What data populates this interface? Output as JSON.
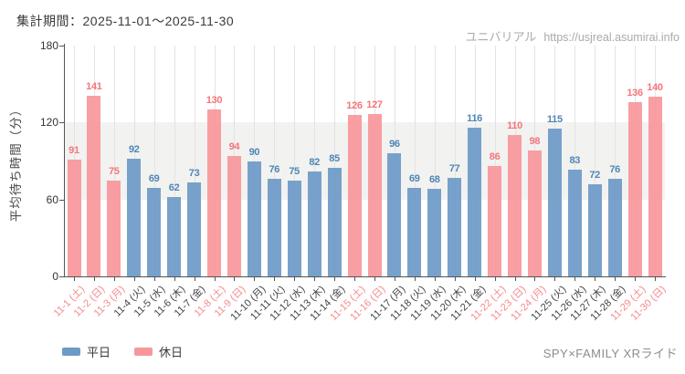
{
  "header": {
    "period_label": "集計期間：2025-11-01～2025-11-30"
  },
  "watermark": {
    "brand": "ユニバリアル",
    "url": "https://usjreal.asumirai.info"
  },
  "legend": {
    "weekday_label": "平日",
    "holiday_label": "休日"
  },
  "footer": {
    "attraction_label": "SPY×FAMILY XRライド"
  },
  "colors": {
    "weekday_bar": "#6d9ac7",
    "holiday_bar": "#f8969a",
    "weekday_value_label": "#4e86b7",
    "holiday_value_label": "#f5757c",
    "weekday_tick_label": "#444444",
    "holiday_tick_label": "#f58a8e",
    "band": "#f2f2f0",
    "gridline": "#e3e3e3",
    "axis": "#555555"
  },
  "chart_data": {
    "type": "bar",
    "title": "集計期間：2025-11-01～2025-11-30",
    "xlabel": "",
    "ylabel": "平均待ち時間（分）",
    "ylim": [
      0,
      180
    ],
    "yticks": [
      0,
      60,
      120,
      180
    ],
    "shaded_band_y": [
      60,
      120
    ],
    "grid": "vertical-per-category",
    "legend_position": "bottom-left",
    "legend_entries": [
      "平日",
      "休日"
    ],
    "categories": [
      "11-1 (土)",
      "11-2 (日)",
      "11-3 (月)",
      "11-4 (火)",
      "11-5 (水)",
      "11-6 (木)",
      "11-7 (金)",
      "11-8 (土)",
      "11-9 (日)",
      "11-10 (月)",
      "11-11 (火)",
      "11-12 (水)",
      "11-13 (木)",
      "11-14 (金)",
      "11-15 (土)",
      "11-16 (日)",
      "11-17 (月)",
      "11-18 (火)",
      "11-19 (水)",
      "11-20 (木)",
      "11-21 (金)",
      "11-22 (土)",
      "11-23 (日)",
      "11-24 (月)",
      "11-25 (火)",
      "11-26 (水)",
      "11-27 (木)",
      "11-28 (金)",
      "11-29 (土)",
      "11-30 (日)"
    ],
    "values": [
      91,
      141,
      75,
      92,
      69,
      62,
      73,
      130,
      94,
      90,
      76,
      75,
      82,
      85,
      126,
      127,
      96,
      69,
      68,
      77,
      116,
      86,
      110,
      98,
      115,
      83,
      72,
      76,
      136,
      140
    ],
    "day_types": [
      "holiday",
      "holiday",
      "holiday",
      "weekday",
      "weekday",
      "weekday",
      "weekday",
      "holiday",
      "holiday",
      "weekday",
      "weekday",
      "weekday",
      "weekday",
      "weekday",
      "holiday",
      "holiday",
      "weekday",
      "weekday",
      "weekday",
      "weekday",
      "weekday",
      "holiday",
      "holiday",
      "holiday",
      "weekday",
      "weekday",
      "weekday",
      "weekday",
      "holiday",
      "holiday"
    ]
  }
}
